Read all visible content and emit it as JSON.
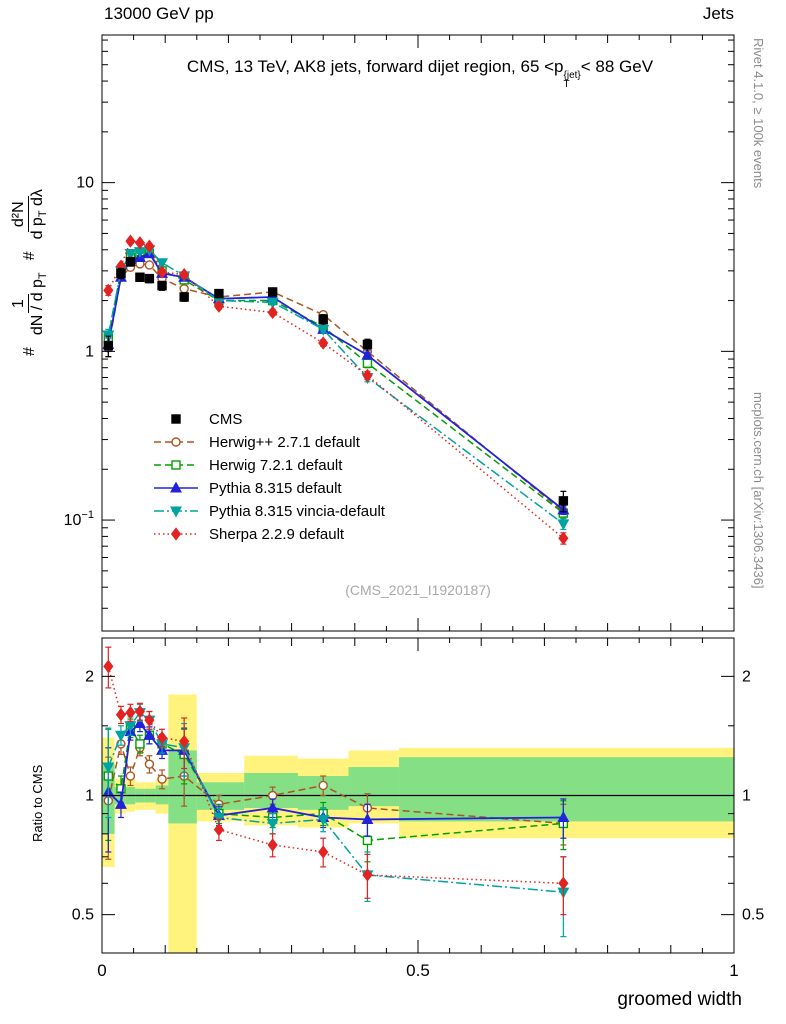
{
  "header": {
    "left": "13000 GeV pp",
    "right": "Jets"
  },
  "title": {
    "main": "CMS, 13 TeV, AK8 jets, forward dijet region, 65 <p",
    "p_sup": "{jet}",
    "p_sub": "T",
    "tail": "< 88 GeV"
  },
  "side_labels": {
    "right_top": "Rivet 4.1.0, ≥ 100k events",
    "right_bottom": "mcplots.cern.ch [arXiv:1306.3436]",
    "watermark": "(CMS_2021_I1920187)"
  },
  "axes": {
    "x_title": "groomed width",
    "ratio_label": "Ratio to CMS"
  },
  "ylabel": {
    "hash1": "#",
    "frac1_num": "1",
    "frac1_den": "dN / d p",
    "frac1_den_sub": "T",
    "hash2": "#",
    "frac2_num": "d²N",
    "frac2_den_a": "d p",
    "frac2_den_a_sub": "T",
    "frac2_den_b": " dλ"
  },
  "chart_data": {
    "type": "line",
    "title": "CMS, 13 TeV, AK8 jets, forward dijet region, 65 < pT{jet} < 88 GeV",
    "xlabel": "groomed width",
    "ylabel": "# 1/(dN/dpT) d²N/(dpT dλ)",
    "ratio_ylabel": "Ratio to CMS",
    "legend_position": "middle-left",
    "grid": false,
    "xlim": [
      0,
      1
    ],
    "main_ylim": [
      0.022,
      75
    ],
    "main_yscale": "log",
    "ratio_ylim": [
      0.4,
      2.5
    ],
    "ratio_yscale": "log",
    "main_y_ticks": [
      {
        "v": 10,
        "label": "10"
      },
      {
        "v": 1,
        "label": "1"
      },
      {
        "v": 0.1,
        "label": "10",
        "sup": "−1"
      }
    ],
    "ratio_y_ticks": [
      {
        "v": 2,
        "label": "2"
      },
      {
        "v": 1,
        "label": "1"
      },
      {
        "v": 0.5,
        "label": "0.5"
      }
    ],
    "ratio_y_minor": [
      0.4,
      0.6,
      0.7,
      0.8,
      0.9,
      1.5
    ],
    "x_ticks": [
      {
        "v": 0,
        "label": "0"
      },
      {
        "v": 0.5,
        "label": "0.5"
      },
      {
        "v": 1,
        "label": "1"
      }
    ],
    "band_colors": {
      "yellow": "#fff37d",
      "green": "#85df85"
    },
    "x": [
      0.01,
      0.03,
      0.045,
      0.06,
      0.075,
      0.095,
      0.13,
      0.185,
      0.27,
      0.35,
      0.42,
      0.73
    ],
    "series": [
      {
        "id": "cms",
        "name": "CMS",
        "color": "#000000",
        "marker": "square",
        "open": false,
        "line": "none",
        "values": [
          1.08,
          2.9,
          3.4,
          2.75,
          2.7,
          2.45,
          2.1,
          2.2,
          2.25,
          1.55,
          1.1,
          0.13
        ],
        "err": [
          0.15,
          0.2,
          0.2,
          0.15,
          0.15,
          0.15,
          0.12,
          0.12,
          0.12,
          0.1,
          0.08,
          0.018
        ]
      },
      {
        "id": "herwigpp",
        "name": "Herwig++ 2.7.1 default",
        "color": "#aa5522",
        "marker": "circle",
        "open": true,
        "line": "dash",
        "values": [
          1.05,
          2.75,
          3.15,
          3.3,
          3.25,
          2.7,
          2.35,
          2.1,
          2.25,
          1.65,
          1.0,
          0.112
        ],
        "err": [
          0.12,
          0.1,
          0.1,
          0.1,
          0.1,
          0.1,
          0.08,
          0.07,
          0.07,
          0.07,
          0.05,
          0.008
        ],
        "ratio": [
          0.97,
          1.35,
          1.12,
          1.32,
          1.2,
          1.1,
          1.12,
          0.95,
          1.0,
          1.06,
          0.93,
          0.85
        ],
        "ratio_err": [
          0.28,
          0.08,
          0.06,
          0.06,
          0.06,
          0.06,
          0.18,
          0.05,
          0.05,
          0.06,
          0.08,
          0.1
        ]
      },
      {
        "id": "herwig7",
        "name": "Herwig 7.2.1 default",
        "color": "#00a000",
        "marker": "square",
        "open": true,
        "line": "dash",
        "values": [
          1.2,
          3.0,
          3.6,
          3.7,
          3.8,
          3.0,
          2.65,
          2.0,
          2.0,
          1.4,
          0.85,
          0.11
        ],
        "err": [
          0.12,
          0.1,
          0.1,
          0.1,
          0.1,
          0.1,
          0.08,
          0.07,
          0.07,
          0.06,
          0.05,
          0.008
        ],
        "ratio": [
          1.12,
          1.04,
          1.48,
          1.35,
          1.42,
          1.35,
          1.27,
          0.9,
          0.88,
          0.9,
          0.77,
          0.85
        ],
        "ratio_err": [
          0.35,
          0.08,
          0.08,
          0.07,
          0.07,
          0.07,
          0.2,
          0.05,
          0.05,
          0.06,
          0.09,
          0.12
        ]
      },
      {
        "id": "pythia",
        "name": "Pythia 8.315 default",
        "color": "#2222dd",
        "marker": "triangle-up",
        "open": false,
        "line": "solid",
        "values": [
          1.1,
          2.75,
          3.5,
          3.6,
          3.8,
          2.9,
          2.75,
          2.05,
          2.1,
          1.35,
          0.95,
          0.115
        ],
        "err": [
          0.1,
          0.09,
          0.09,
          0.09,
          0.09,
          0.09,
          0.08,
          0.06,
          0.06,
          0.05,
          0.04,
          0.007
        ],
        "ratio": [
          1.02,
          0.95,
          1.45,
          1.52,
          1.42,
          1.3,
          1.3,
          0.89,
          0.93,
          0.88,
          0.87,
          0.88
        ],
        "ratio_err": [
          0.3,
          0.07,
          0.07,
          0.07,
          0.07,
          0.06,
          0.18,
          0.05,
          0.05,
          0.05,
          0.08,
          0.1
        ]
      },
      {
        "id": "vincia",
        "name": "Pythia 8.315 vincia-default",
        "color": "#00a2a2",
        "marker": "triangle-down",
        "open": false,
        "line": "dashdot",
        "values": [
          1.25,
          3.0,
          3.8,
          3.9,
          4.0,
          3.35,
          2.8,
          2.0,
          1.95,
          1.35,
          0.7,
          0.095
        ],
        "err": [
          0.1,
          0.09,
          0.09,
          0.09,
          0.09,
          0.09,
          0.08,
          0.06,
          0.06,
          0.05,
          0.04,
          0.007
        ],
        "ratio": [
          1.18,
          1.42,
          1.5,
          1.62,
          1.55,
          1.35,
          1.32,
          0.88,
          0.85,
          0.87,
          0.63,
          0.57
        ],
        "ratio_err": [
          0.3,
          0.08,
          0.08,
          0.08,
          0.08,
          0.07,
          0.2,
          0.05,
          0.05,
          0.06,
          0.09,
          0.13
        ]
      },
      {
        "id": "sherpa",
        "name": "Sherpa 2.2.9 default",
        "color": "#e32222",
        "marker": "diamond",
        "open": false,
        "line": "dot",
        "values": [
          2.3,
          3.2,
          4.5,
          4.4,
          4.2,
          2.95,
          2.85,
          1.85,
          1.7,
          1.12,
          0.72,
          0.078
        ],
        "err": [
          0.15,
          0.12,
          0.12,
          0.12,
          0.12,
          0.1,
          0.09,
          0.07,
          0.07,
          0.05,
          0.04,
          0.006
        ],
        "ratio": [
          2.12,
          1.6,
          1.62,
          1.63,
          1.55,
          1.4,
          1.37,
          0.82,
          0.75,
          0.72,
          0.63,
          0.6
        ],
        "ratio_err": [
          0.25,
          0.08,
          0.08,
          0.08,
          0.08,
          0.07,
          0.2,
          0.05,
          0.05,
          0.06,
          0.08,
          0.1
        ]
      }
    ],
    "ratio_bands": [
      {
        "x": [
          0,
          0.02
        ],
        "yellow": [
          0.66,
          1.4
        ],
        "green": [
          0.8,
          1.2
        ]
      },
      {
        "x": [
          0.02,
          0.0375
        ],
        "yellow": [
          0.9,
          1.1
        ],
        "green": [
          0.95,
          1.05
        ]
      },
      {
        "x": [
          0.0375,
          0.0525
        ],
        "yellow": [
          0.91,
          1.1
        ],
        "green": [
          0.95,
          1.05
        ]
      },
      {
        "x": [
          0.0525,
          0.0675
        ],
        "yellow": [
          0.92,
          1.08
        ],
        "green": [
          0.96,
          1.04
        ]
      },
      {
        "x": [
          0.0675,
          0.085
        ],
        "yellow": [
          0.92,
          1.08
        ],
        "green": [
          0.96,
          1.04
        ]
      },
      {
        "x": [
          0.085,
          0.105
        ],
        "yellow": [
          0.9,
          1.1
        ],
        "green": [
          0.95,
          1.06
        ]
      },
      {
        "x": [
          0.105,
          0.15
        ],
        "yellow": [
          0.35,
          1.8
        ],
        "green": [
          0.85,
          1.3
        ]
      },
      {
        "x": [
          0.15,
          0.225
        ],
        "yellow": [
          0.86,
          1.14
        ],
        "green": [
          0.92,
          1.08
        ]
      },
      {
        "x": [
          0.225,
          0.31
        ],
        "yellow": [
          0.84,
          1.26
        ],
        "green": [
          0.93,
          1.14
        ]
      },
      {
        "x": [
          0.31,
          0.39
        ],
        "yellow": [
          0.83,
          1.24
        ],
        "green": [
          0.92,
          1.12
        ]
      },
      {
        "x": [
          0.39,
          0.47
        ],
        "yellow": [
          0.85,
          1.3
        ],
        "green": [
          0.94,
          1.18
        ]
      },
      {
        "x": [
          0.47,
          1.0
        ],
        "yellow": [
          0.78,
          1.32
        ],
        "green": [
          0.86,
          1.25
        ]
      }
    ]
  }
}
